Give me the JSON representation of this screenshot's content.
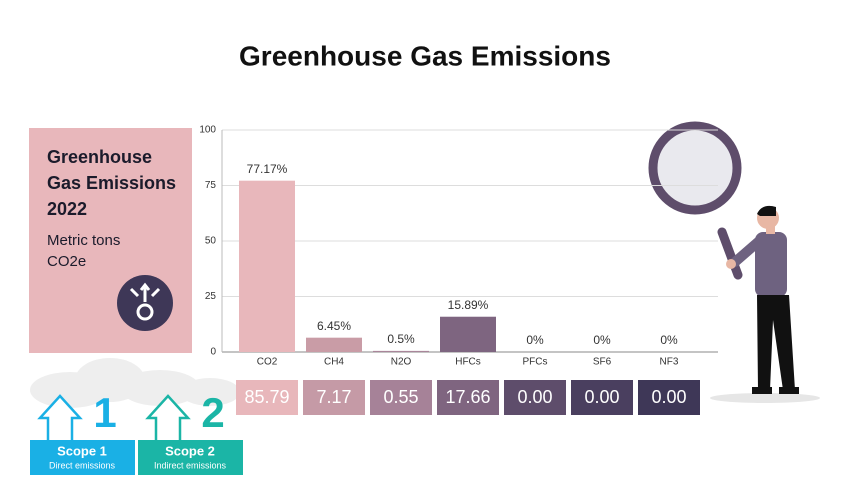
{
  "chart_data": {
    "type": "bar",
    "title": "Greenhouse Gas Emissions",
    "categories": [
      "CO2",
      "CH4",
      "N2O",
      "HFCs",
      "PFCs",
      "SF6",
      "NF3"
    ],
    "values": [
      77.17,
      6.45,
      0.5,
      15.89,
      0,
      0,
      0
    ],
    "value_labels": [
      "77.17%",
      "6.45%",
      "0.5%",
      "15.89%",
      "0%",
      "0%",
      "0%"
    ],
    "colors": [
      "#e8b7bb",
      "#c99ca6",
      "#a9869a",
      "#7e6580",
      "#5e4d6b",
      "#4a3f5f",
      "#3e3757"
    ],
    "ylim": [
      0,
      100
    ],
    "yticks": [
      0,
      25,
      50,
      75,
      100
    ],
    "grid": true
  },
  "panel": {
    "title_lines": [
      "Greenhouse",
      "Gas Emissions",
      "2022"
    ],
    "subtitle_lines": [
      "Metric tons",
      "CO2e"
    ]
  },
  "table": {
    "cells": [
      "85.79",
      "7.17",
      "0.55",
      "17.66",
      "0.00",
      "0.00",
      "0.00"
    ],
    "colors": [
      "#e8b7bb",
      "#c59aa6",
      "#a68298",
      "#7f6580",
      "#5e4d6b",
      "#4a3f5f",
      "#3e3757"
    ]
  },
  "scopes": [
    {
      "number": "1",
      "label": "Scope 1",
      "description": "Direct emissions"
    },
    {
      "number": "2",
      "label": "Scope 2",
      "description": "Indirect emissions"
    }
  ]
}
